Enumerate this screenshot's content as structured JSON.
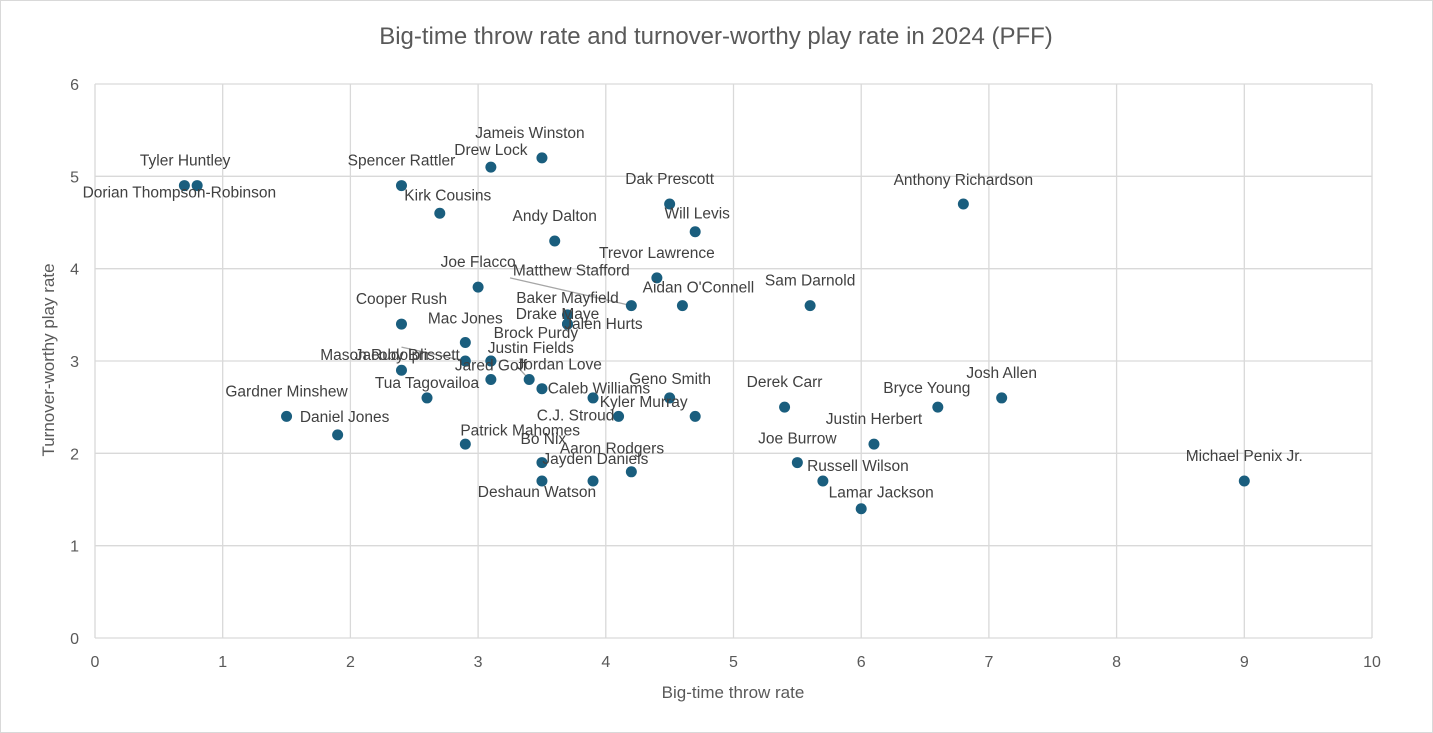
{
  "chart_data": {
    "type": "scatter",
    "title": "Big-time throw rate and turnover-worthy play rate in 2024 (PFF)",
    "xlabel": "Big-time throw rate",
    "ylabel": "Turnover-worthy play rate",
    "xlim": [
      0,
      10
    ],
    "ylim": [
      0,
      6
    ],
    "xticks": [
      "0",
      "1",
      "2",
      "3",
      "4",
      "5",
      "6",
      "7",
      "8",
      "9",
      "10"
    ],
    "yticks": [
      "0",
      "1",
      "2",
      "3",
      "4",
      "5",
      "6"
    ],
    "grid": true,
    "marker_color": "#1a5e7e",
    "points": [
      {
        "name": "Tyler Huntley",
        "x": 0.8,
        "y": 4.9
      },
      {
        "name": "Dorian Thompson-Robinson",
        "x": 0.7,
        "y": 4.9
      },
      {
        "name": "Spencer Rattler",
        "x": 2.4,
        "y": 4.9
      },
      {
        "name": "Drew Lock",
        "x": 3.1,
        "y": 5.1
      },
      {
        "name": "Jameis Winston",
        "x": 3.5,
        "y": 5.2
      },
      {
        "name": "Kirk Cousins",
        "x": 2.7,
        "y": 4.6
      },
      {
        "name": "Dak Prescott",
        "x": 4.5,
        "y": 4.7
      },
      {
        "name": "Anthony Richardson",
        "x": 6.8,
        "y": 4.7
      },
      {
        "name": "Andy Dalton",
        "x": 3.6,
        "y": 4.3
      },
      {
        "name": "Will Levis",
        "x": 4.7,
        "y": 4.4
      },
      {
        "name": "Trevor Lawrence",
        "x": 4.4,
        "y": 3.9
      },
      {
        "name": "Joe Flacco",
        "x": 3.0,
        "y": 3.8
      },
      {
        "name": "Matthew Stafford",
        "x": 4.2,
        "y": 3.6
      },
      {
        "name": "Aidan O'Connell",
        "x": 4.6,
        "y": 3.6
      },
      {
        "name": "Sam Darnold",
        "x": 5.6,
        "y": 3.6
      },
      {
        "name": "Baker Mayfield",
        "x": 3.7,
        "y": 3.5
      },
      {
        "name": "Drake Maye",
        "x": 3.7,
        "y": 3.4
      },
      {
        "name": "Jalen Hurts",
        "x": 3.7,
        "y": 3.4
      },
      {
        "name": "Cooper Rush",
        "x": 2.4,
        "y": 3.4
      },
      {
        "name": "Mac Jones",
        "x": 2.9,
        "y": 3.2
      },
      {
        "name": "Jacoby Brissett",
        "x": 2.9,
        "y": 3.0
      },
      {
        "name": "Brock Purdy",
        "x": 3.1,
        "y": 3.0
      },
      {
        "name": "Justin Fields",
        "x": 3.1,
        "y": 3.0
      },
      {
        "name": "Mason Rudolph",
        "x": 2.4,
        "y": 2.9
      },
      {
        "name": "Jared Goff",
        "x": 3.1,
        "y": 2.8
      },
      {
        "name": "Jordan Love",
        "x": 3.4,
        "y": 2.8
      },
      {
        "name": "Caleb Williams",
        "x": 3.5,
        "y": 2.7
      },
      {
        "name": "Geno Smith",
        "x": 3.9,
        "y": 2.6
      },
      {
        "name": "Tua Tagovailoa",
        "x": 2.6,
        "y": 2.6
      },
      {
        "name": "Kyler Murray",
        "x": 4.5,
        "y": 2.6
      },
      {
        "name": "Derek Carr",
        "x": 5.4,
        "y": 2.5
      },
      {
        "name": "Josh Allen",
        "x": 7.1,
        "y": 2.6
      },
      {
        "name": "Bryce Young",
        "x": 6.6,
        "y": 2.5
      },
      {
        "name": "Gardner Minshew",
        "x": 1.5,
        "y": 2.4
      },
      {
        "name": "C.J. Stroud",
        "x": 4.1,
        "y": 2.4
      },
      {
        "name": "Patrick Mahomes",
        "x": 4.7,
        "y": 2.4
      },
      {
        "name": "Daniel Jones",
        "x": 1.9,
        "y": 2.2
      },
      {
        "name": "Justin Herbert",
        "x": 6.1,
        "y": 2.1
      },
      {
        "name": "Bo Nix",
        "x": 2.9,
        "y": 2.1
      },
      {
        "name": "Aaron Rodgers",
        "x": 3.5,
        "y": 1.9
      },
      {
        "name": "Joe Burrow",
        "x": 5.5,
        "y": 1.9
      },
      {
        "name": "Jayden Daniels",
        "x": 4.2,
        "y": 1.8
      },
      {
        "name": "Russell Wilson",
        "x": 5.7,
        "y": 1.7
      },
      {
        "name": "Deshaun Watson",
        "x": 3.5,
        "y": 1.7
      },
      {
        "name": "Unlabeled point",
        "x": 3.9,
        "y": 1.7
      },
      {
        "name": "Michael Penix Jr.",
        "x": 9.0,
        "y": 1.7
      },
      {
        "name": "Lamar Jackson",
        "x": 6.0,
        "y": 1.4
      }
    ]
  }
}
